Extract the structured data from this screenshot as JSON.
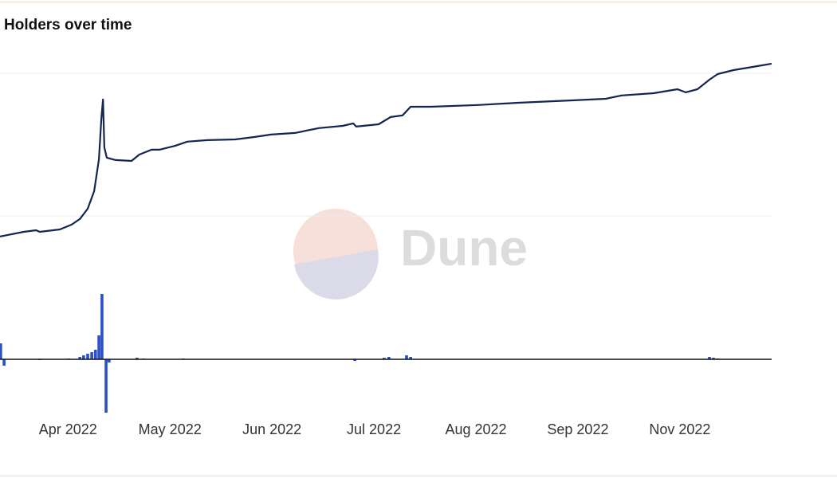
{
  "watermark": "Dune",
  "chart_data": [
    {
      "type": "line",
      "title": "Holders over time",
      "color": "#14254f",
      "grid": true,
      "x": [
        0,
        2.3,
        7.0,
        10.6,
        11.7,
        17.6,
        21.1,
        23.5,
        25.8,
        27.7,
        29.1,
        29.8,
        30.3,
        30.7,
        31.4,
        34.0,
        38.7,
        41.0,
        44.6,
        46.9,
        51.6,
        55.1,
        61.0,
        69.2,
        75.0,
        79.7,
        86.8,
        93.8,
        100.8,
        103.9,
        104.8,
        111.4,
        114.9,
        118.4,
        120.8,
        126.6,
        140.7,
        152.4,
        168.9,
        178.2,
        182.9,
        192.3,
        199.3,
        201.7,
        205.2,
        208.7,
        211.1,
        215.8,
        222.8,
        227.0
      ],
      "values": [
        855,
        866,
        888,
        899,
        888,
        905,
        939,
        978,
        1050,
        1173,
        1397,
        1676,
        1816,
        1480,
        1408,
        1391,
        1385,
        1430,
        1464,
        1464,
        1492,
        1520,
        1531,
        1536,
        1553,
        1570,
        1581,
        1615,
        1631,
        1648,
        1626,
        1642,
        1693,
        1704,
        1765,
        1765,
        1777,
        1793,
        1810,
        1821,
        1844,
        1860,
        1888,
        1866,
        1888,
        1955,
        1994,
        2022,
        2050,
        2067
      ],
      "xlim": [
        0,
        227
      ],
      "ylim": [
        0,
        2100
      ],
      "yticks": [
        1000,
        2000
      ]
    },
    {
      "type": "bar",
      "color": "#2d4fc4",
      "x": [
        0.2,
        1.2,
        11.7,
        20.2,
        23.5,
        24.6,
        25.8,
        27.0,
        28.1,
        29.1,
        30.0,
        31.2,
        32.1,
        40.3,
        42.2,
        53.9,
        104.4,
        113.0,
        114.4,
        119.6,
        120.8,
        208.7,
        209.9,
        211.1
      ],
      "values": [
        20,
        -8,
        -1,
        1,
        3,
        5,
        7,
        9,
        12,
        30,
        82,
        -67,
        -4,
        2,
        1,
        1,
        -2,
        2,
        3,
        5,
        3,
        3,
        2,
        1
      ],
      "xlim": [
        0,
        227
      ],
      "ylim": [
        -80,
        100
      ],
      "xticks": [
        {
          "value": 20,
          "label": "Apr 2022"
        },
        {
          "value": 50,
          "label": "May 2022"
        },
        {
          "value": 80,
          "label": "Jun 2022"
        },
        {
          "value": 110,
          "label": "Jul 2022"
        },
        {
          "value": 140,
          "label": "Aug 2022"
        },
        {
          "value": 170,
          "label": "Sep 2022"
        },
        {
          "value": 200,
          "label": "Nov 2022"
        }
      ]
    }
  ]
}
